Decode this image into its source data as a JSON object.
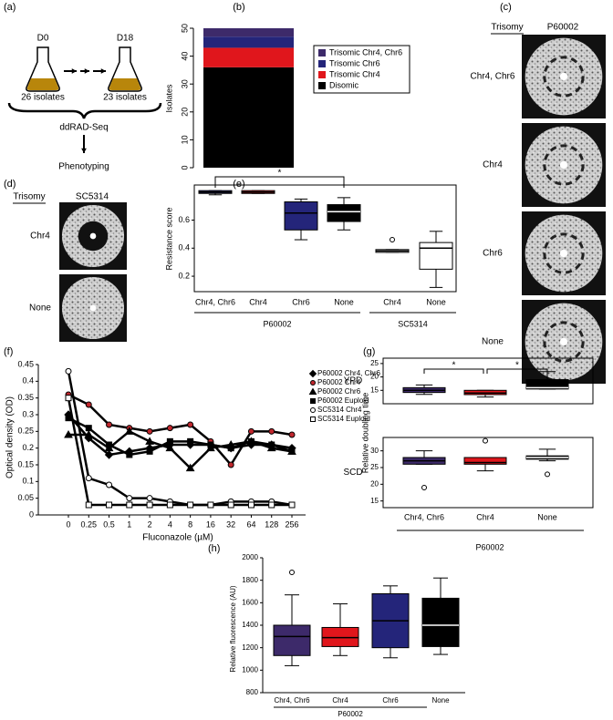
{
  "chart_data": [
    {
      "type": "diagram",
      "panel_label": "(a)",
      "start": "D0",
      "end": "D18",
      "start_count": "26 isolates",
      "end_count": "23 isolates",
      "method": "ddRAD-Seq",
      "outcome": "Phenotyping"
    },
    {
      "type": "stacked-bar",
      "panel_label": "(b)",
      "y_label": "Isolates",
      "ylim": [
        0,
        50
      ],
      "yticks": [
        0,
        10,
        20,
        30,
        40,
        50
      ],
      "series": [
        {
          "name": "Disomic",
          "color": "#000000",
          "values": [
            36
          ]
        },
        {
          "name": "Trisomic Chr4",
          "color": "#e0161c",
          "values": [
            7
          ]
        },
        {
          "name": "Trisomic Chr6",
          "color": "#24257a",
          "values": [
            4
          ]
        },
        {
          "name": "Trisomic Chr4, Chr6",
          "color": "#3d2a6a",
          "values": [
            3
          ]
        }
      ]
    },
    {
      "type": "image-grid",
      "panel_label": "(c)",
      "row_header": "Trisomy",
      "column": "P60002",
      "rows": [
        "Chr4, Chr6",
        "Chr4",
        "Chr6",
        "None"
      ]
    },
    {
      "type": "image-grid",
      "panel_label": "(d)",
      "row_header": "Trisomy",
      "column": "SC5314",
      "rows": [
        "Chr4",
        "None"
      ]
    },
    {
      "type": "box",
      "panel_label": "(e)",
      "y_label": "Resistance score",
      "ylim": [
        0.09,
        0.85
      ],
      "yticks": [
        0.2,
        0.4,
        0.6
      ],
      "significance": [
        "*"
      ],
      "groups": [
        {
          "name": "P60002",
          "categories": [
            "Chr4, Chr6",
            "Chr4",
            "Chr6",
            "None"
          ],
          "boxes": [
            {
              "color": "#24257a",
              "min": 0.78,
              "q1": 0.79,
              "median": 0.8,
              "q3": 0.81,
              "max": 0.81,
              "outliers": []
            },
            {
              "color": "#e0161c",
              "min": 0.79,
              "q1": 0.79,
              "median": 0.8,
              "q3": 0.81,
              "max": 0.81,
              "outliers": []
            },
            {
              "color": "#24257a",
              "min": 0.46,
              "q1": 0.53,
              "median": 0.65,
              "q3": 0.73,
              "max": 0.75,
              "outliers": []
            },
            {
              "color": "#000000",
              "min": 0.53,
              "q1": 0.59,
              "median": 0.66,
              "q3": 0.71,
              "max": 0.76,
              "outliers": []
            }
          ]
        },
        {
          "name": "SC5314",
          "categories": [
            "Chr4",
            "None"
          ],
          "boxes": [
            {
              "color": "#ffffff",
              "min": 0.37,
              "q1": 0.37,
              "median": 0.38,
              "q3": 0.39,
              "max": 0.39,
              "outliers": [
                0.46
              ]
            },
            {
              "color": "#ffffff",
              "min": 0.12,
              "q1": 0.25,
              "median": 0.4,
              "q3": 0.44,
              "max": 0.52,
              "outliers": []
            }
          ]
        }
      ]
    },
    {
      "type": "line",
      "panel_label": "(f)",
      "y_label": "Optical density (OD)",
      "x_label": "Fluconazole (µM)",
      "line_color": "#000000",
      "categories": [
        "0",
        "0.25",
        "0.5",
        "1",
        "2",
        "4",
        "8",
        "16",
        "32",
        "64",
        "128",
        "256"
      ],
      "ylim": [
        0,
        0.45
      ],
      "yticks": [
        0,
        0.05,
        0.1,
        0.15,
        0.2,
        0.25,
        0.3,
        0.35,
        0.4,
        0.45
      ],
      "series": [
        {
          "name": "P60002 Chr4, Chr6",
          "marker": "diamond",
          "color": "#000000",
          "values": [
            0.3,
            0.23,
            0.18,
            0.19,
            0.2,
            0.21,
            0.21,
            0.21,
            0.2,
            0.21,
            0.21,
            0.2
          ]
        },
        {
          "name": "P60002 Chr4",
          "marker": "circle",
          "color": "#c0272d",
          "values": [
            0.36,
            0.33,
            0.27,
            0.26,
            0.25,
            0.26,
            0.27,
            0.22,
            0.15,
            0.25,
            0.25,
            0.24
          ]
        },
        {
          "name": "P60002 Chr6",
          "marker": "triangle",
          "color": "#000000",
          "values": [
            0.24,
            0.24,
            0.2,
            0.25,
            0.22,
            0.2,
            0.14,
            0.2,
            0.21,
            0.22,
            0.2,
            0.19
          ]
        },
        {
          "name": "P60002 Euploid",
          "marker": "square",
          "color": "#000000",
          "values": [
            0.29,
            0.26,
            0.21,
            0.18,
            0.19,
            0.22,
            0.22,
            0.21,
            0.2,
            0.22,
            0.21,
            0.19
          ]
        },
        {
          "name": "SC5314 Chr4",
          "marker": "circle",
          "color": "#ffffff",
          "values": [
            0.43,
            0.11,
            0.09,
            0.05,
            0.05,
            0.04,
            0.03,
            0.03,
            0.04,
            0.04,
            0.04,
            0.03
          ]
        },
        {
          "name": "SC5314 Euploid",
          "marker": "square",
          "color": "#ffffff",
          "values": [
            0.35,
            0.03,
            0.03,
            0.03,
            0.03,
            0.03,
            0.03,
            0.03,
            0.03,
            0.03,
            0.03,
            0.03
          ]
        }
      ]
    },
    {
      "type": "box",
      "panel_label": "(g)",
      "y_label": "Relative doubling time",
      "significance": [
        "*",
        "*"
      ],
      "facets": [
        {
          "name": "YPD",
          "ylim": [
            10,
            27
          ],
          "yticks": [
            15,
            20,
            25
          ],
          "boxes": [
            {
              "color": "#3d2a6a",
              "min": 13.5,
              "q1": 14.2,
              "median": 15,
              "q3": 16,
              "max": 17,
              "outliers": []
            },
            {
              "color": "#e0161c",
              "min": 12.5,
              "q1": 13.4,
              "median": 14,
              "q3": 15,
              "max": 15,
              "outliers": []
            },
            {
              "color": "#000000",
              "min": 15.5,
              "q1": 15.5,
              "median": 16,
              "q3": 19,
              "max": 22,
              "outliers": []
            }
          ]
        },
        {
          "name": "SCD",
          "ylim": [
            13,
            34
          ],
          "yticks": [
            15,
            20,
            25,
            30
          ],
          "boxes": [
            {
              "color": "#3d2a6a",
              "min": 26,
              "q1": 26,
              "median": 27,
              "q3": 28,
              "max": 30,
              "outliers": [
                19
              ]
            },
            {
              "color": "#e0161c",
              "min": 24,
              "q1": 26,
              "median": 26.5,
              "q3": 28,
              "max": 28,
              "outliers": [
                33
              ]
            },
            {
              "color": "#000000",
              "min": 27,
              "q1": 27.5,
              "median": 28,
              "q3": 28.5,
              "max": 30.5,
              "outliers": [
                23
              ]
            }
          ]
        }
      ],
      "groups": [
        {
          "name": "P60002",
          "categories": [
            "Chr4, Chr6",
            "Chr4",
            "None"
          ]
        }
      ]
    },
    {
      "type": "box",
      "panel_label": "(h)",
      "y_label": "Relative fluorescence (AU)",
      "ylim": [
        800,
        2000
      ],
      "yticks": [
        800,
        1000,
        1200,
        1400,
        1600,
        1800,
        2000
      ],
      "groups": [
        {
          "name": "P60002",
          "categories": [
            "Chr4, Chr6",
            "Chr4",
            "Chr6",
            "None"
          ],
          "boxes": [
            {
              "color": "#3d2a6a",
              "min": 1040,
              "q1": 1130,
              "median": 1300,
              "q3": 1400,
              "max": 1670,
              "outliers": [
                1870
              ]
            },
            {
              "color": "#e0161c",
              "min": 1130,
              "q1": 1210,
              "median": 1290,
              "q3": 1380,
              "max": 1590,
              "outliers": []
            },
            {
              "color": "#24257a",
              "min": 1110,
              "q1": 1200,
              "median": 1440,
              "q3": 1680,
              "max": 1750,
              "outliers": []
            },
            {
              "color": "#000000",
              "min": 1140,
              "q1": 1210,
              "median": 1400,
              "q3": 1640,
              "max": 1820,
              "outliers": []
            }
          ]
        }
      ]
    }
  ]
}
